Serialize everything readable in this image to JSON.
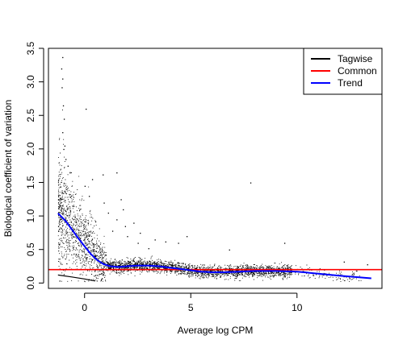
{
  "chart_data": {
    "type": "scatter",
    "title": "",
    "xlabel": "Average log CPM",
    "ylabel": "Biological coefficient of variation",
    "xlim": [
      -1.7,
      14.0
    ],
    "ylim": [
      -0.08,
      3.5
    ],
    "x_ticks": [
      0,
      5,
      10
    ],
    "x_tick_labels": [
      "0",
      "5",
      "10"
    ],
    "y_ticks": [
      0.0,
      0.5,
      1.0,
      1.5,
      2.0,
      2.5,
      3.0,
      3.5
    ],
    "y_tick_labels": [
      "0.0",
      "0.5",
      "1.0",
      "1.5",
      "2.0",
      "2.5",
      "3.0",
      "3.5"
    ],
    "grid": false,
    "legend_position": "top-right",
    "series": [
      {
        "name": "Tagwise",
        "color": "#000000",
        "kind": "points",
        "description_density": "dense cloud of tagwise dispersions following the trend, wider spread at low CPM",
        "outliers": [
          {
            "x": -1.05,
            "y": 3.37
          },
          {
            "x": -1.1,
            "y": 3.2
          },
          {
            "x": -1.05,
            "y": 3.05
          },
          {
            "x": -1.08,
            "y": 2.92
          },
          {
            "x": -1.02,
            "y": 2.65
          },
          {
            "x": -0.98,
            "y": 2.45
          },
          {
            "x": -1.05,
            "y": 2.25
          },
          {
            "x": -0.95,
            "y": 2.05
          },
          {
            "x": -1.0,
            "y": 2.0
          },
          {
            "x": -0.9,
            "y": 1.85
          },
          {
            "x": 0.05,
            "y": 2.6
          },
          {
            "x": -0.8,
            "y": 1.75
          },
          {
            "x": -0.7,
            "y": 1.65
          },
          {
            "x": 0.35,
            "y": 1.55
          },
          {
            "x": 0.0,
            "y": 1.45
          },
          {
            "x": 0.2,
            "y": 1.3
          },
          {
            "x": 0.9,
            "y": 1.2
          },
          {
            "x": 1.5,
            "y": 1.65
          },
          {
            "x": 0.85,
            "y": 1.62
          },
          {
            "x": 1.1,
            "y": 1.05
          },
          {
            "x": 1.8,
            "y": 1.1
          },
          {
            "x": 1.5,
            "y": 0.95
          },
          {
            "x": 1.9,
            "y": 0.85
          },
          {
            "x": 1.7,
            "y": 1.25
          },
          {
            "x": 2.3,
            "y": 0.9
          },
          {
            "x": 2.0,
            "y": 0.7
          },
          {
            "x": 2.6,
            "y": 0.75
          },
          {
            "x": 2.5,
            "y": 0.6
          },
          {
            "x": 3.3,
            "y": 0.65
          },
          {
            "x": 3.8,
            "y": 0.62
          },
          {
            "x": 4.4,
            "y": 0.6
          },
          {
            "x": 4.8,
            "y": 0.7
          },
          {
            "x": 6.8,
            "y": 0.5
          },
          {
            "x": 7.8,
            "y": 1.5
          },
          {
            "x": 9.4,
            "y": 0.6
          },
          {
            "x": 12.2,
            "y": 0.32
          },
          {
            "x": 13.3,
            "y": 0.28
          },
          {
            "x": 0.5,
            "y": 0.92
          },
          {
            "x": 1.3,
            "y": 0.78
          },
          {
            "x": 3.0,
            "y": 0.52
          }
        ]
      },
      {
        "name": "Common",
        "color": "#ff0000",
        "kind": "hline",
        "y": 0.2
      },
      {
        "name": "Trend",
        "color": "#0000ff",
        "kind": "line",
        "x": [
          -1.25,
          -0.9,
          -0.6,
          -0.3,
          0.0,
          0.3,
          0.6,
          0.9,
          1.2,
          1.6,
          2.0,
          2.5,
          3.0,
          3.5,
          4.0,
          4.5,
          5.0,
          5.5,
          6.0,
          6.5,
          7.0,
          8.0,
          9.0,
          10.0,
          11.0,
          12.0,
          13.5
        ],
        "y": [
          1.04,
          0.93,
          0.8,
          0.67,
          0.55,
          0.43,
          0.34,
          0.28,
          0.25,
          0.24,
          0.25,
          0.26,
          0.26,
          0.25,
          0.23,
          0.21,
          0.19,
          0.17,
          0.16,
          0.16,
          0.165,
          0.18,
          0.18,
          0.17,
          0.14,
          0.11,
          0.07
        ]
      }
    ],
    "tagwise_lower_segment": {
      "x": [
        -1.25,
        -0.6,
        0.0,
        0.5
      ],
      "y": [
        0.12,
        0.09,
        0.06,
        0.03
      ]
    }
  }
}
